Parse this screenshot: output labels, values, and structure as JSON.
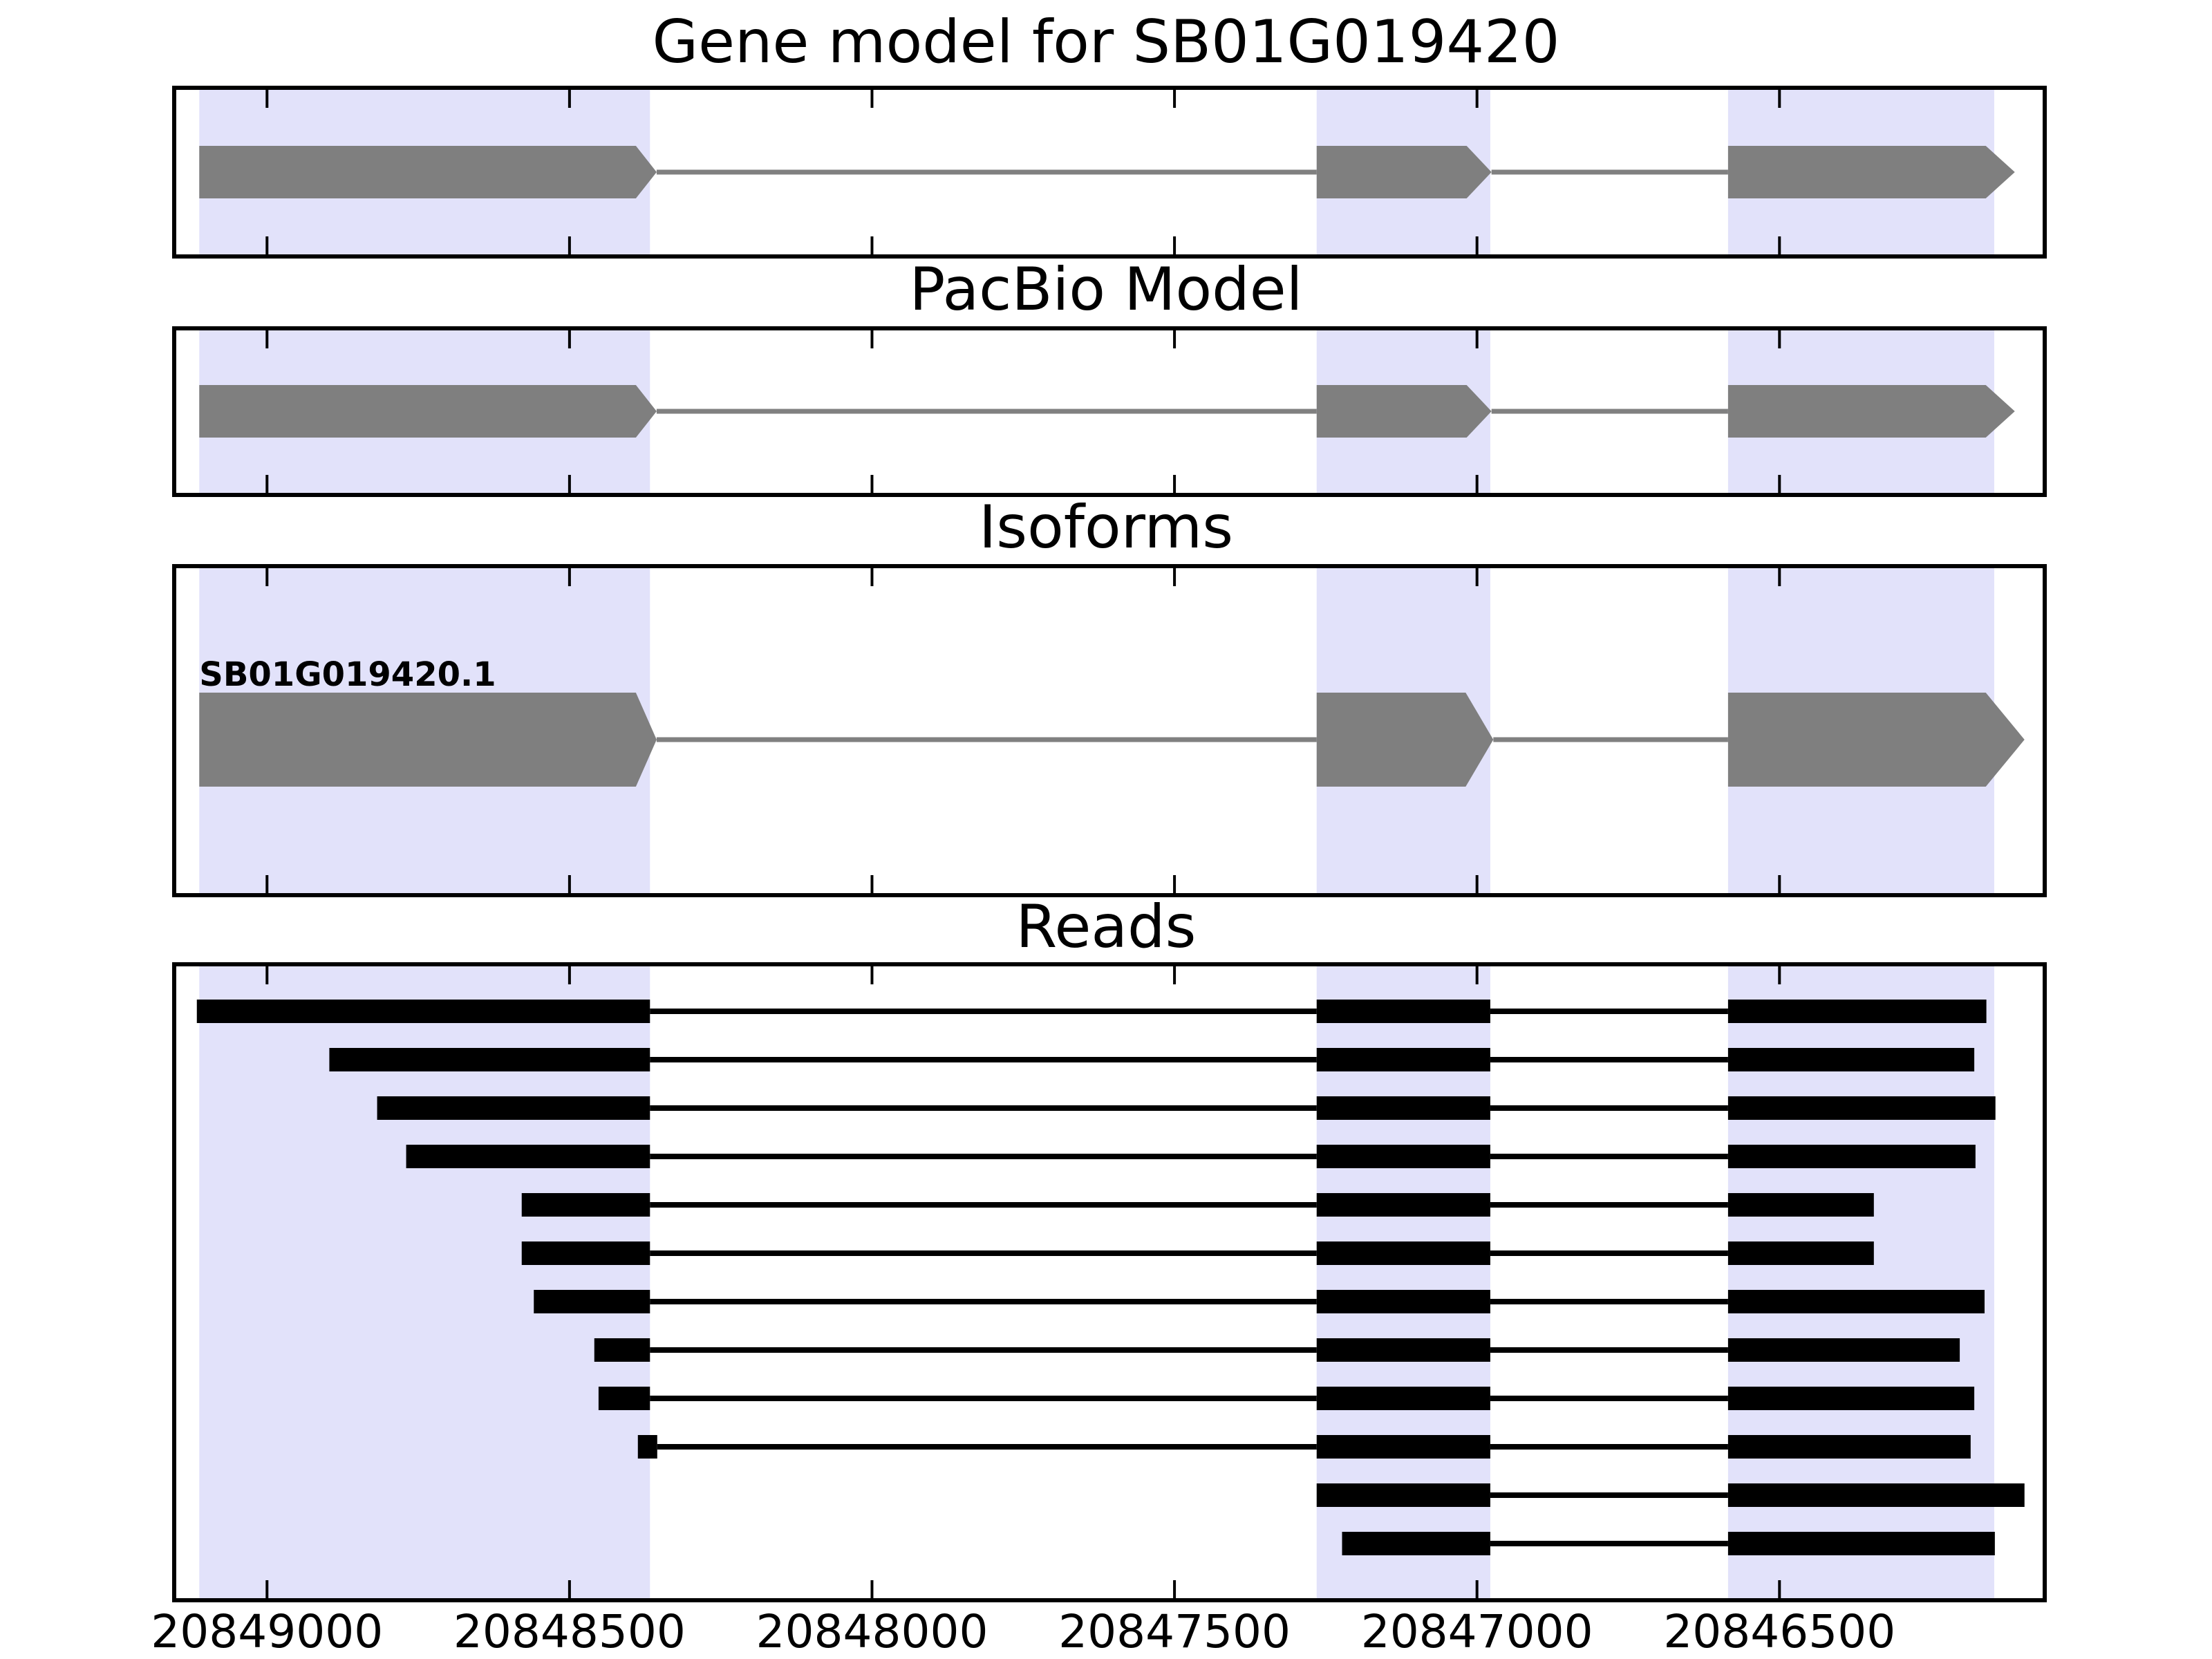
{
  "figure": {
    "titles": {
      "gene_model": "Gene model for SB01G019420",
      "pacbio": "PacBio Model",
      "isoforms": "Isoforms",
      "reads": "Reads"
    },
    "colors": {
      "background": "#ffffff",
      "exon_fill": "#7f7f7f",
      "intron_line": "#808080",
      "read_fill": "#000000",
      "highlight_band": "#e2e2fa",
      "panel_border": "#000000",
      "text": "#000000"
    }
  },
  "chart_data": {
    "type": "genomic-tracks",
    "title": "Gene model for SB01G019420",
    "panel_titles": [
      "Gene model for SB01G019420",
      "PacBio Model",
      "Isoforms",
      "Reads"
    ],
    "x_axis": {
      "unit": "bp",
      "direction": "decreasing-rightward",
      "domain_left_bp": 20849150,
      "domain_right_bp": 20846065,
      "ticks": [
        20849000,
        20848500,
        20848000,
        20847500,
        20847000,
        20846500
      ]
    },
    "highlight_regions": [
      [
        20849112,
        20848367
      ],
      [
        20847265,
        20846978
      ],
      [
        20846585,
        20846145
      ]
    ],
    "tracks": {
      "gene_model": {
        "exons": [
          [
            20849112,
            20848356
          ],
          [
            20847265,
            20846976
          ],
          [
            20846585,
            20846111
          ]
        ]
      },
      "pacbio_model": {
        "exons": [
          [
            20849112,
            20848356
          ],
          [
            20847265,
            20846976
          ],
          [
            20846585,
            20846111
          ]
        ]
      },
      "isoforms": [
        {
          "name": "SB01G019420.1",
          "exons": [
            [
              20849112,
              20848356
            ],
            [
              20847265,
              20846973
            ],
            [
              20846585,
              20846095
            ]
          ]
        }
      ],
      "reads": [
        {
          "blocks": [
            [
              20849116,
              20848367
            ],
            [
              20847265,
              20846978
            ],
            [
              20846585,
              20846158
            ]
          ]
        },
        {
          "blocks": [
            [
              20848897,
              20848367
            ],
            [
              20847265,
              20846978
            ],
            [
              20846585,
              20846178
            ]
          ]
        },
        {
          "blocks": [
            [
              20848818,
              20848367
            ],
            [
              20847265,
              20846978
            ],
            [
              20846585,
              20846143
            ]
          ]
        },
        {
          "blocks": [
            [
              20848770,
              20848367
            ],
            [
              20847265,
              20846978
            ],
            [
              20846585,
              20846176
            ]
          ]
        },
        {
          "blocks": [
            [
              20848579,
              20848367
            ],
            [
              20847265,
              20846978
            ],
            [
              20846585,
              20846344
            ]
          ]
        },
        {
          "blocks": [
            [
              20848579,
              20848367
            ],
            [
              20847265,
              20846978
            ],
            [
              20846585,
              20846344
            ]
          ]
        },
        {
          "blocks": [
            [
              20848559,
              20848367
            ],
            [
              20847265,
              20846978
            ],
            [
              20846585,
              20846161
            ]
          ]
        },
        {
          "blocks": [
            [
              20848459,
              20848367
            ],
            [
              20847265,
              20846978
            ],
            [
              20846585,
              20846202
            ]
          ]
        },
        {
          "blocks": [
            [
              20848452,
              20848367
            ],
            [
              20847265,
              20846978
            ],
            [
              20846585,
              20846178
            ]
          ]
        },
        {
          "blocks": [
            [
              20848387,
              20848355
            ],
            [
              20847265,
              20846978
            ],
            [
              20846585,
              20846184
            ]
          ]
        },
        {
          "blocks": [
            [
              20847265,
              20846978
            ],
            [
              20846585,
              20846095
            ]
          ]
        },
        {
          "blocks": [
            [
              20847223,
              20846978
            ],
            [
              20846585,
              20846144
            ]
          ]
        }
      ]
    }
  }
}
